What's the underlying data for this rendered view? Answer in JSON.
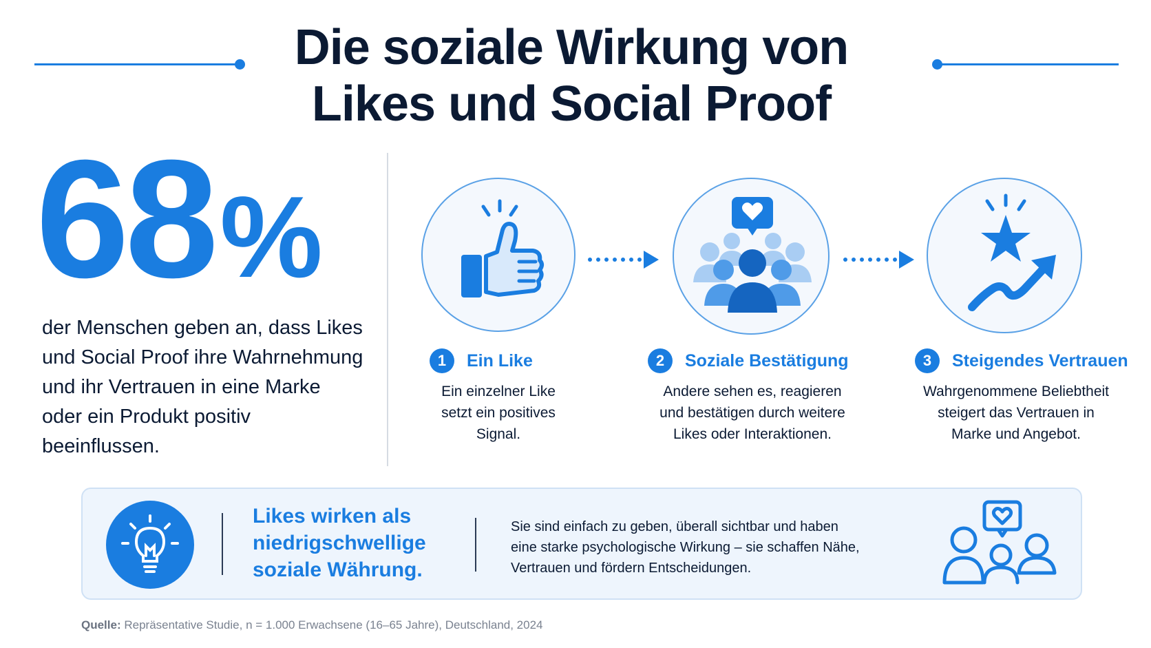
{
  "header": {
    "title_line1": "Die soziale Wirkung von",
    "title_line2": "Likes und Social Proof"
  },
  "stat": {
    "number": "68",
    "unit": "%",
    "description": "der Menschen geben an, dass Likes und Social Proof ihre Wahrnehmung und ihr Vertrauen in eine Marke oder ein Produkt positiv beeinflussen."
  },
  "steps": [
    {
      "num": "1",
      "title": "Ein Like",
      "desc_lines": [
        "Ein einzelner Like",
        "setzt ein positives",
        "Signal."
      ],
      "icon": "thumbs-up-icon"
    },
    {
      "num": "2",
      "title": "Soziale Bestätigung",
      "desc_lines": [
        "Andere sehen es, reagieren",
        "und bestätigen durch weitere",
        "Likes oder Interaktionen."
      ],
      "icon": "crowd-heart-icon"
    },
    {
      "num": "3",
      "title": "Steigendes Vertrauen",
      "desc_lines": [
        "Wahrgenommene Beliebtheit",
        "steigert das Vertrauen in",
        "Marke und Angebot."
      ],
      "icon": "star-trend-icon"
    }
  ],
  "banner": {
    "headline_lines": [
      "Likes wirken als",
      "niedrigschwellige",
      "soziale Währung."
    ],
    "text_lines": [
      "Sie sind einfach zu geben, überall sichtbar und haben",
      "eine starke psychologische Wirkung – sie schaffen Nähe,",
      "Vertrauen und fördern Entscheidungen."
    ],
    "icon_left": "lightbulb-icon",
    "icon_right": "people-heart-icon"
  },
  "source": {
    "label": "Quelle:",
    "text": " Repräsentative Studie, n = 1.000 Erwachsene (16–65 Jahre), Deutschland, 2024"
  },
  "colors": {
    "accent": "#1a7de0",
    "text": "#0b1a33",
    "banner_bg": "#eef5fd"
  }
}
